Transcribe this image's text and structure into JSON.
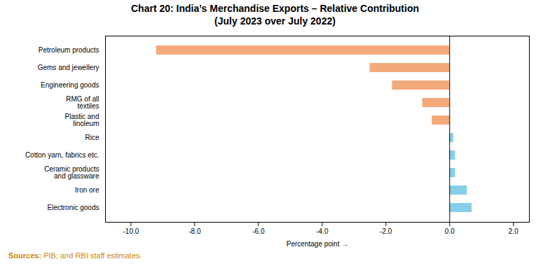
{
  "chart_data": {
    "type": "bar",
    "orientation": "horizontal",
    "title": "Chart 20: India’s Merchandise Exports – Relative Contribution\n(July 2023 over July 2022)",
    "xlabel": "Percentage point",
    "categories": [
      "Electronic goods",
      "Iron ore",
      "Ceramic products\nand glassware",
      "Cotton yarn, fabrics etc.",
      "Rice",
      "Plastic and\nlinoleum",
      "RMG of all\ntextiles",
      "Engineering goods",
      "Gems and jewellery",
      "Petroleum products"
    ],
    "values": [
      0.7,
      0.55,
      0.18,
      0.18,
      0.12,
      -0.55,
      -0.85,
      -1.8,
      -2.5,
      -9.2
    ],
    "colors": [
      "#87CEEB",
      "#87CEEB",
      "#87CEEB",
      "#87CEEB",
      "#87CEEB",
      "#F4A97A",
      "#F4A97A",
      "#F4A97A",
      "#F4A97A",
      "#F4A97A"
    ],
    "xlim": [
      -10.8,
      2.5
    ],
    "xticks": [
      {
        "value": -10.0,
        "label": "-10.0"
      },
      {
        "value": -8.0,
        "label": "-8.0"
      },
      {
        "value": -6.0,
        "label": "-6.0"
      },
      {
        "value": -4.0,
        "label": "-4.0"
      },
      {
        "value": -2.0,
        "label": "-2.0"
      },
      {
        "value": 0.0,
        "label": "0.0"
      },
      {
        "value": 2.0,
        "label": "2.0"
      }
    ],
    "grid": false,
    "annotations": [
      {
        "text": "Sources:",
        "color": "#C8860A"
      },
      {
        "text": " PIB; and RBI staff estimates.",
        "color": "#C8860A"
      }
    ]
  }
}
